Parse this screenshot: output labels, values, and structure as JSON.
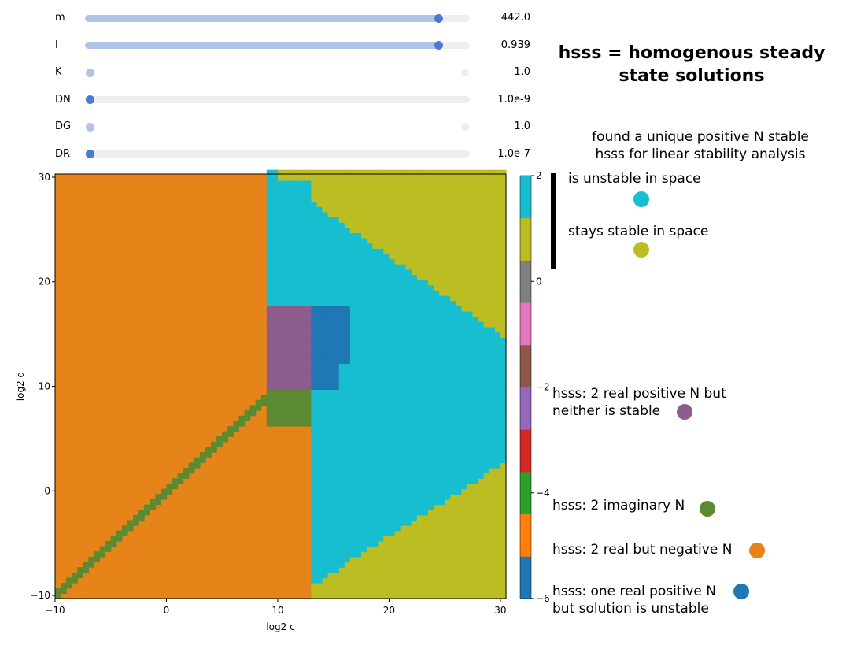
{
  "sliders": [
    {
      "label": "m",
      "value_text": "442.0",
      "fraction": 0.93,
      "active": true
    },
    {
      "label": "l",
      "value_text": "0.939",
      "fraction": 0.93,
      "active": true
    },
    {
      "label": "K",
      "value_text": "1.0",
      "fraction": 0.0,
      "active": false
    },
    {
      "label": "DN",
      "value_text": "1.0e-9",
      "fraction": 0.0,
      "active": true
    },
    {
      "label": "DG",
      "value_text": "1.0",
      "fraction": 0.0,
      "active": false
    },
    {
      "label": "DR",
      "value_text": "1.0e-7",
      "fraction": 0.0,
      "active": true
    }
  ],
  "title_line1": "hsss = homogenous steady",
  "title_line2": "state solutions",
  "stable_group": {
    "line1": "found a unique positive N stable",
    "line2": "hsss for linear stability analysis"
  },
  "legend": [
    {
      "id": "unstable-space",
      "lines": [
        "is unstable in space"
      ],
      "color": "#17becf"
    },
    {
      "id": "stable-space",
      "lines": [
        "stays stable in space"
      ],
      "color": "#bcbd22"
    },
    {
      "id": "two-real-unstable",
      "lines": [
        "hsss: 2 real positive N but",
        "neither is stable"
      ],
      "color": "#8c5d8c"
    },
    {
      "id": "imaginary",
      "lines": [
        "hsss: 2 imaginary N"
      ],
      "color": "#5b8a32"
    },
    {
      "id": "negative",
      "lines": [
        "hsss: 2 real but negative N"
      ],
      "color": "#e6841a"
    },
    {
      "id": "one-real-unstable",
      "lines": [
        "hsss: one real positive N",
        "but solution is unstable"
      ],
      "color": "#1f77b4"
    }
  ],
  "chart_data": {
    "type": "heatmap",
    "xlabel": "log2 c",
    "ylabel": "log2 d",
    "xlim": [
      -10,
      30.5
    ],
    "ylim": [
      -10.3,
      30.3
    ],
    "xticks": [
      -10,
      0,
      10,
      20,
      30
    ],
    "yticks": [
      -10,
      0,
      10,
      20,
      30
    ],
    "colorbar": {
      "range": [
        -6,
        2
      ],
      "ticks": [
        2,
        0,
        -2,
        -4,
        -6
      ],
      "colormap": "tab10"
    },
    "regions": [
      {
        "category": "hsss: 2 real but negative N",
        "value": -5,
        "color": "#e6841a"
      },
      {
        "category": "hsss: 2 imaginary N",
        "value": -4,
        "color": "#5b8a32"
      },
      {
        "category": "hsss: 2 real positive N but neither is stable",
        "value": -1,
        "color": "#8c5d8c"
      },
      {
        "category": "hsss: one real positive N but solution is unstable",
        "value": -6,
        "color": "#1f77b4"
      },
      {
        "category": "is unstable in space",
        "value": 2,
        "color": "#17becf"
      },
      {
        "category": "stays stable in space",
        "value": 1,
        "color": "#bcbd22"
      }
    ]
  }
}
